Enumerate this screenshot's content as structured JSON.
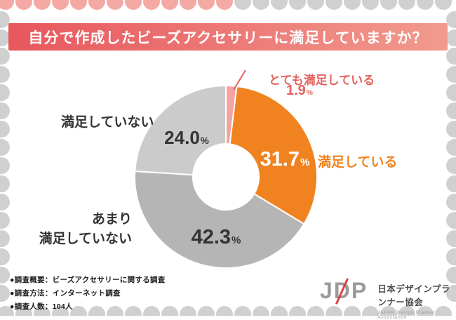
{
  "title_banner": {
    "text": "自分で作成したビーズアクセサリーに満足していますか？"
  },
  "chart_data": {
    "type": "pie",
    "donut": true,
    "title": "自分で作成したビーズアクセサリーに満足していますか？",
    "unit": "%",
    "start_angle_deg": 0,
    "direction": "clockwise",
    "segments": [
      {
        "label": "とても満足している",
        "label_display": "とても満足している",
        "value": 1.9,
        "display": "1.9",
        "color": "#f4a3a0"
      },
      {
        "label": "満足している",
        "label_display": "満足している",
        "value": 31.7,
        "display": "31.7",
        "color": "#f0831f"
      },
      {
        "label": "あまり満足していない",
        "label_display": "あまり\n満足していない",
        "value": 42.3,
        "display": "42.3",
        "color": "#b5b5b5"
      },
      {
        "label": "満足していない",
        "label_display": "満足していない",
        "value": 24.0,
        "display": "24.0",
        "color": "#cbcbcb"
      }
    ]
  },
  "survey_notes": [
    "●調査概要：ビーズアクセサリーに関する調査",
    "●調査方法：インターネット調査",
    "●調査人数：104人"
  ],
  "logo": {
    "acronym": "JDP",
    "name_jp": "日本デザインプランナー協会",
    "name_en": "JAPAN  Design  Planner  Association"
  },
  "style": {
    "banner_gradient_left": "#e7575e",
    "banner_gradient_right": "#f29a8e",
    "accent_coral": "#e2635e",
    "accent_orange": "#f0831f",
    "dot_pink": "#f4a9a4",
    "dot_gray": "#d0d0d0",
    "percent_dark": "#333333",
    "percent_light": "#ffffff"
  }
}
